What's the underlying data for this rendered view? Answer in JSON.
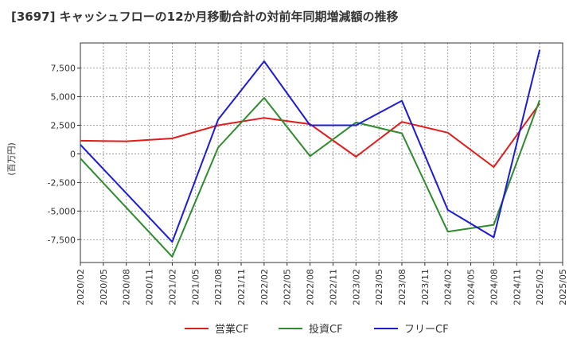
{
  "chart_data": {
    "type": "line",
    "title": "[3697]  キャッシュフローの12か月移動合計の対前年同期増減額の推移",
    "ylabel": "(百万円)",
    "xlabel": "",
    "ylim": [
      -9500,
      9700
    ],
    "y_ticks": [
      7500,
      5000,
      2500,
      0,
      -2500,
      -5000,
      -7500
    ],
    "y_tick_labels": [
      "7,500",
      "5,000",
      "2,500",
      "0",
      "-2,500",
      "-5,000",
      "-7,500"
    ],
    "x_ticks": [
      "2020/02",
      "2020/05",
      "2020/08",
      "2020/11",
      "2021/02",
      "2021/05",
      "2021/08",
      "2021/11",
      "2022/02",
      "2022/05",
      "2022/08",
      "2022/11",
      "2023/02",
      "2023/05",
      "2023/08",
      "2023/11",
      "2024/02",
      "2024/05",
      "2024/08",
      "2024/11",
      "2025/02",
      "2025/05"
    ],
    "grid": true,
    "legend_position": "bottom",
    "series": [
      {
        "name": "営業CF",
        "color": "#e01b1b",
        "points": [
          [
            "2020/02",
            1150
          ],
          [
            "2020/08",
            1100
          ],
          [
            "2021/02",
            1350
          ],
          [
            "2021/08",
            2500
          ],
          [
            "2022/02",
            3150
          ],
          [
            "2022/08",
            2600
          ],
          [
            "2023/02",
            -250
          ],
          [
            "2023/08",
            2800
          ],
          [
            "2024/02",
            1850
          ],
          [
            "2024/08",
            -1150
          ],
          [
            "2025/02",
            4400
          ]
        ]
      },
      {
        "name": "投資CF",
        "color": "#2e8b2e",
        "points": [
          [
            "2020/02",
            -400
          ],
          [
            "2021/02",
            -9000
          ],
          [
            "2021/08",
            550
          ],
          [
            "2022/02",
            4900
          ],
          [
            "2022/08",
            -200
          ],
          [
            "2023/02",
            2750
          ],
          [
            "2023/08",
            1800
          ],
          [
            "2024/02",
            -6800
          ],
          [
            "2024/08",
            -6200
          ],
          [
            "2025/02",
            4700
          ]
        ]
      },
      {
        "name": "フリーCF",
        "color": "#1c1cd6",
        "points": [
          [
            "2020/02",
            800
          ],
          [
            "2021/02",
            -7700
          ],
          [
            "2021/08",
            3000
          ],
          [
            "2022/02",
            8100
          ],
          [
            "2022/08",
            2500
          ],
          [
            "2023/02",
            2500
          ],
          [
            "2023/08",
            4650
          ],
          [
            "2024/02",
            -4900
          ],
          [
            "2024/08",
            -7300
          ],
          [
            "2025/02",
            9100
          ]
        ]
      }
    ]
  }
}
